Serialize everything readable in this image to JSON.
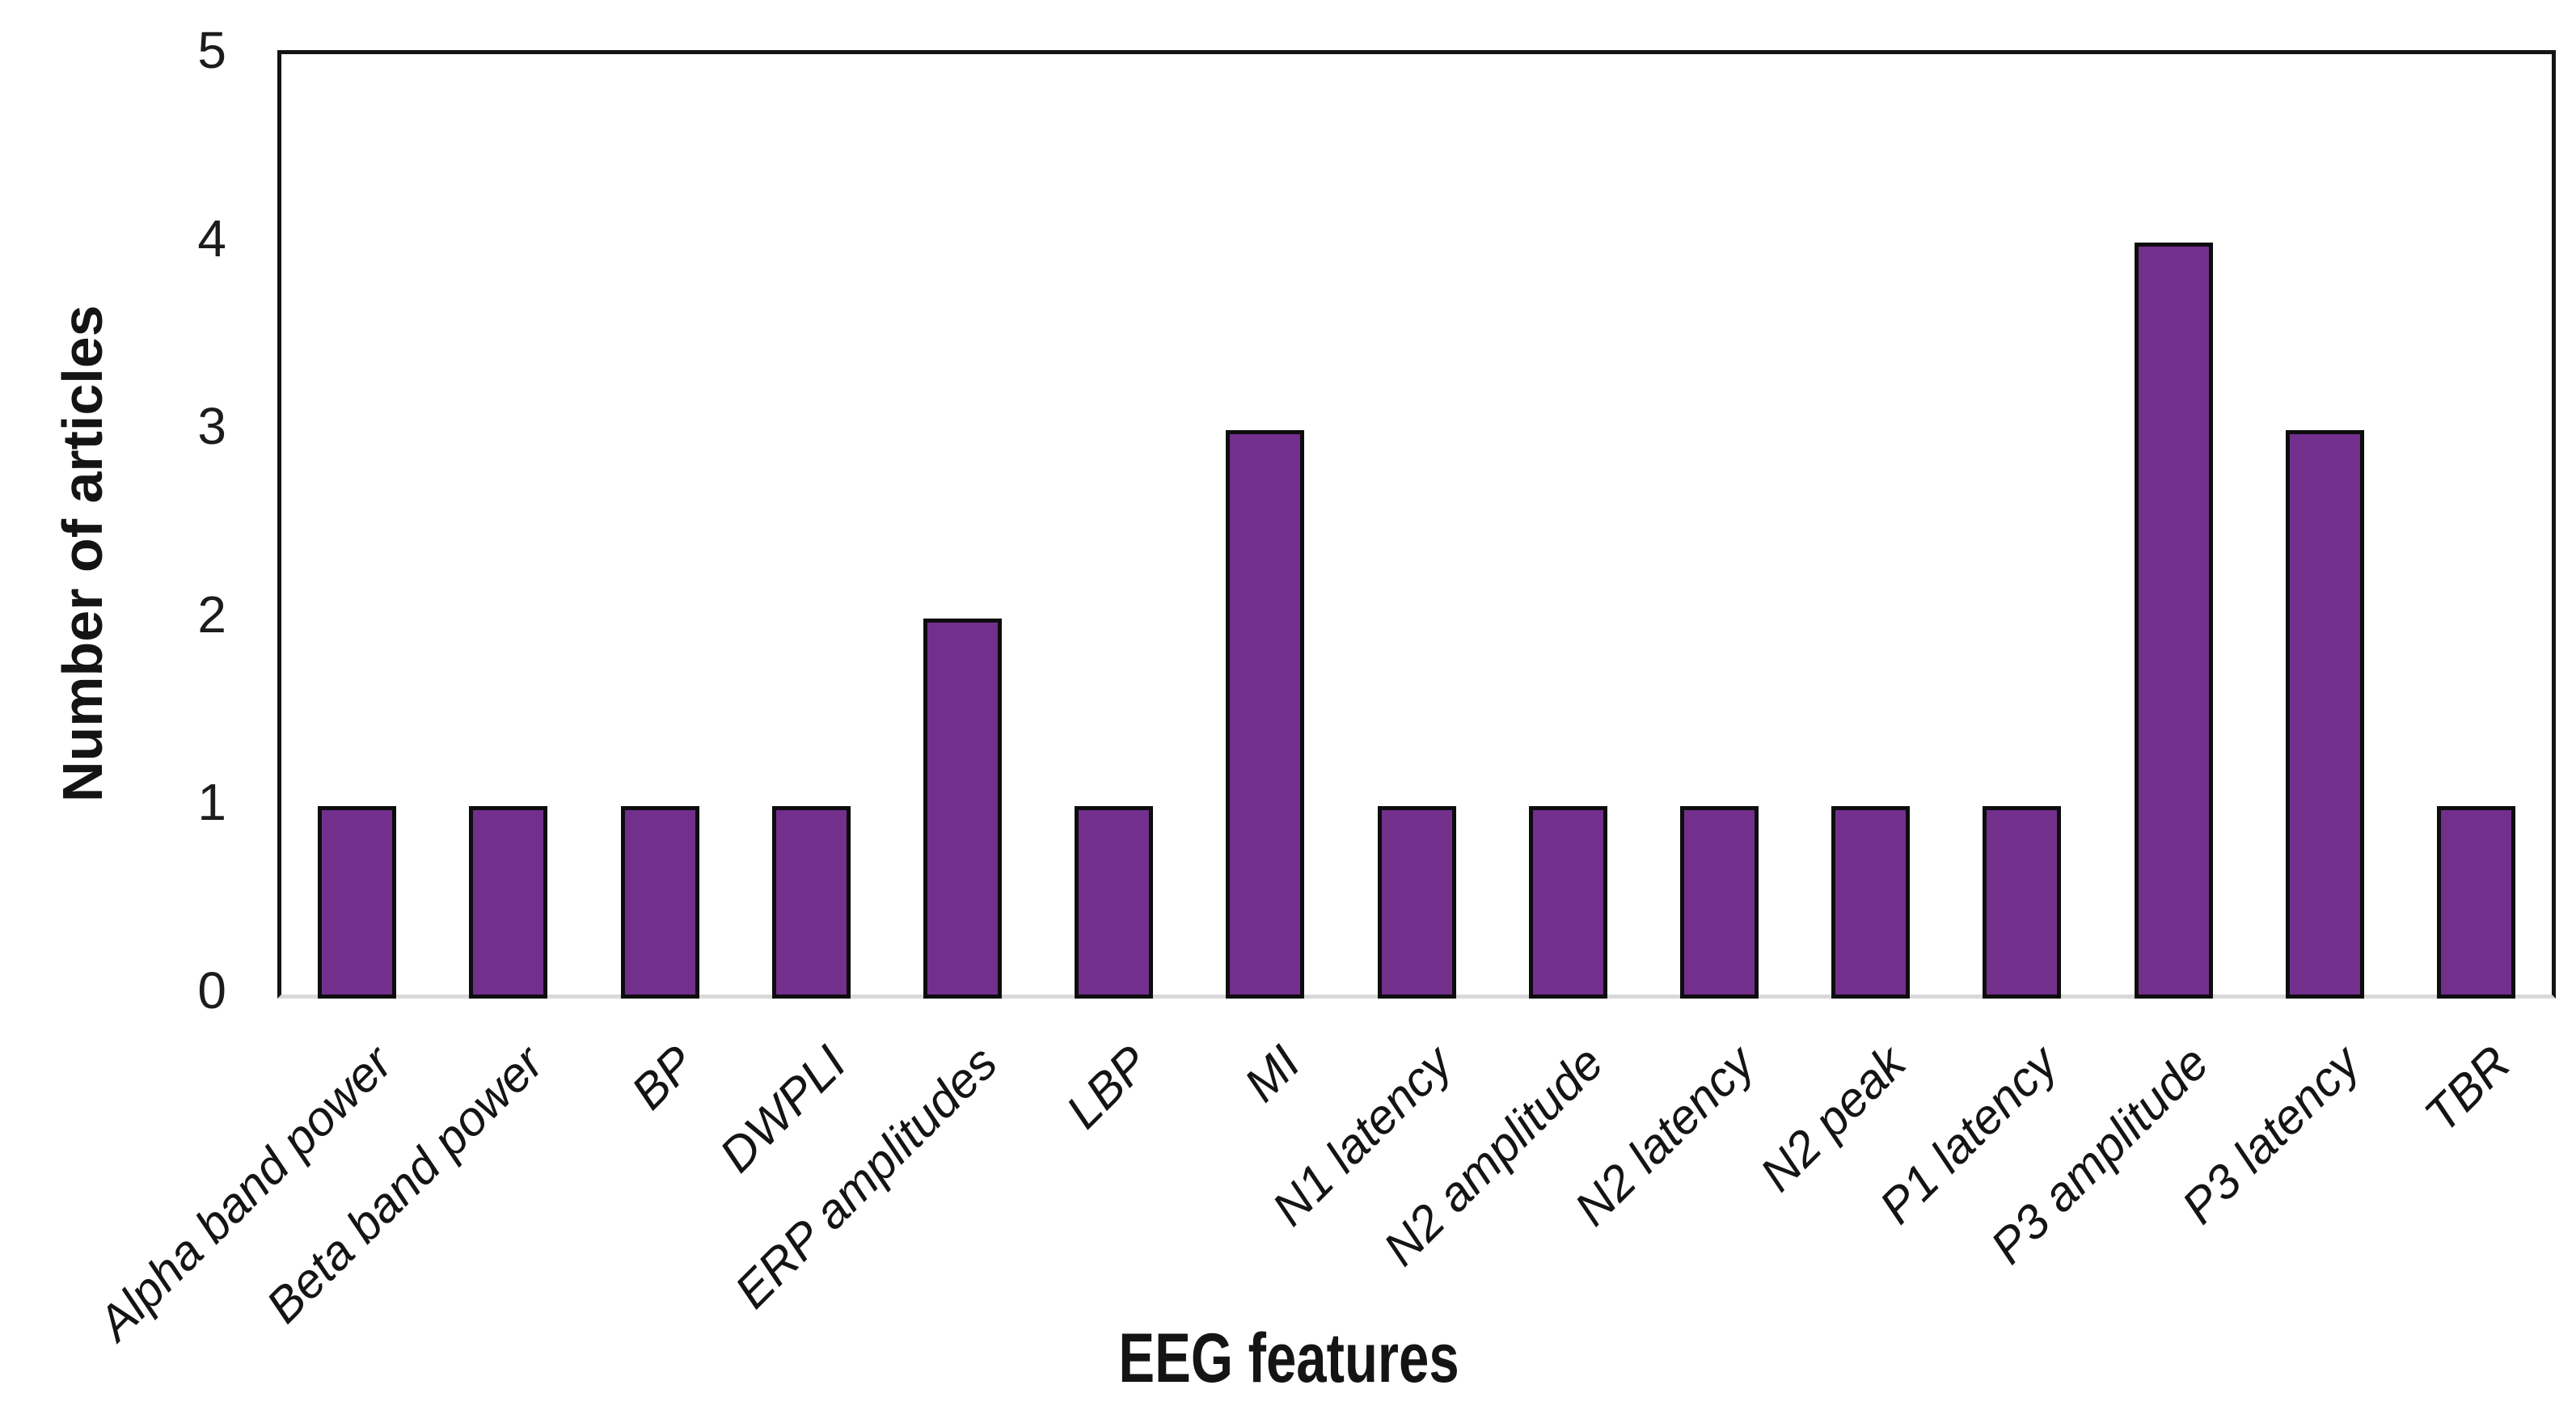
{
  "chart_data": {
    "type": "bar",
    "title": "",
    "xlabel": "EEG features",
    "ylabel": "Number of articles",
    "categories": [
      "Alpha  band power",
      "Beta band power",
      "BP",
      "DWPLI",
      "ERP amplitudes",
      "LBP",
      "MI",
      "N1 latency",
      "N2 amplitude",
      "N2 latency",
      "N2 peak",
      "P1 latency",
      "P3 amplitude",
      "P3 latency",
      "TBR"
    ],
    "values": [
      1,
      1,
      1,
      1,
      2,
      1,
      3,
      1,
      1,
      1,
      1,
      1,
      4,
      3,
      1
    ],
    "ylim": [
      0,
      5
    ],
    "yticks": [
      0,
      1,
      2,
      3,
      4,
      5
    ],
    "grid": false,
    "legend": "none",
    "bar_color": "#722f8b",
    "bar_border_color": "#0d0d0d",
    "axis_color": "#141414",
    "baseline_color": "#d9d9d9",
    "x_tick_style": "italic, rotated 45 degrees"
  }
}
